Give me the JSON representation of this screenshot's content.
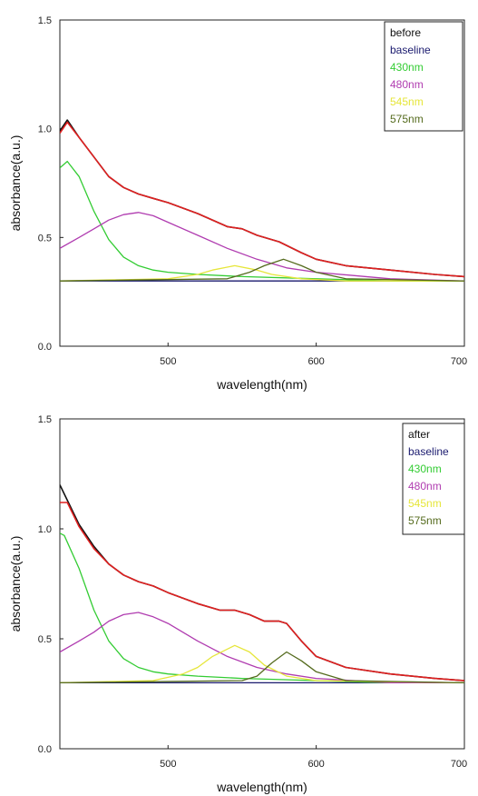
{
  "chart_data": [
    {
      "type": "line",
      "xlabel": "wavelength(nm)",
      "ylabel": "absorbance(a.u.)",
      "xlim": [
        427,
        700
      ],
      "ylim": [
        0.0,
        1.5
      ],
      "xticks": [
        500,
        600,
        700
      ],
      "yticks": [
        0.0,
        0.5,
        1.0,
        1.5
      ],
      "xtick_labels": [
        "500",
        "600",
        "700"
      ],
      "ytick_labels": [
        "0.0",
        "0.5",
        "1.0",
        "1.5"
      ],
      "grid": false,
      "legend_position": "top-right",
      "legend_entries": [
        "before",
        "baseline",
        "430nm",
        "480nm",
        "545nm",
        "575nm"
      ],
      "series": [
        {
          "name": "before",
          "color": "#111111",
          "x": [
            427,
            432,
            440,
            450,
            460,
            470,
            480,
            490,
            500,
            520,
            540,
            550,
            560,
            575,
            590,
            600,
            620,
            650,
            680,
            700
          ],
          "y": [
            0.99,
            1.04,
            0.96,
            0.87,
            0.78,
            0.73,
            0.7,
            0.68,
            0.66,
            0.61,
            0.55,
            0.54,
            0.51,
            0.48,
            0.43,
            0.4,
            0.37,
            0.35,
            0.33,
            0.32
          ]
        },
        {
          "name": "baseline",
          "color": "#1a1a6e",
          "x": [
            427,
            700
          ],
          "y": [
            0.3,
            0.3
          ]
        },
        {
          "name": "430nm",
          "color": "#33cc33",
          "x": [
            427,
            432,
            440,
            450,
            460,
            470,
            480,
            490,
            500,
            520,
            550,
            600,
            650,
            700
          ],
          "y": [
            0.82,
            0.85,
            0.78,
            0.62,
            0.49,
            0.41,
            0.37,
            0.35,
            0.34,
            0.33,
            0.32,
            0.31,
            0.3,
            0.3
          ]
        },
        {
          "name": "480nm",
          "color": "#b03cb0",
          "x": [
            427,
            440,
            450,
            460,
            470,
            480,
            490,
            500,
            520,
            540,
            560,
            580,
            600,
            650,
            700
          ],
          "y": [
            0.45,
            0.5,
            0.54,
            0.58,
            0.605,
            0.615,
            0.6,
            0.57,
            0.51,
            0.45,
            0.4,
            0.36,
            0.34,
            0.31,
            0.3
          ]
        },
        {
          "name": "545nm",
          "color": "#e6e63a",
          "x": [
            427,
            500,
            520,
            530,
            545,
            560,
            570,
            590,
            620,
            700
          ],
          "y": [
            0.3,
            0.31,
            0.33,
            0.35,
            0.37,
            0.35,
            0.33,
            0.31,
            0.3,
            0.3
          ]
        },
        {
          "name": "575nm",
          "color": "#556b1e",
          "x": [
            427,
            540,
            555,
            565,
            578,
            590,
            600,
            620,
            700
          ],
          "y": [
            0.3,
            0.31,
            0.34,
            0.37,
            0.4,
            0.37,
            0.34,
            0.31,
            0.3
          ]
        },
        {
          "name": "",
          "color": "#e02020",
          "x": [
            427,
            432,
            440,
            450,
            460,
            470,
            480,
            490,
            500,
            520,
            540,
            550,
            560,
            575,
            590,
            600,
            620,
            650,
            680,
            700
          ],
          "y": [
            0.98,
            1.03,
            0.96,
            0.87,
            0.78,
            0.73,
            0.7,
            0.68,
            0.66,
            0.61,
            0.55,
            0.54,
            0.51,
            0.48,
            0.43,
            0.4,
            0.37,
            0.35,
            0.33,
            0.32
          ]
        }
      ]
    },
    {
      "type": "line",
      "xlabel": "wavelength(nm)",
      "ylabel": "absorbance(a.u.)",
      "xlim": [
        427,
        700
      ],
      "ylim": [
        0.0,
        1.5
      ],
      "xticks": [
        500,
        600,
        700
      ],
      "yticks": [
        0.0,
        0.5,
        1.0,
        1.5
      ],
      "xtick_labels": [
        "500",
        "600",
        "700"
      ],
      "ytick_labels": [
        "0.0",
        "0.5",
        "1.0",
        "1.5"
      ],
      "grid": false,
      "legend_position": "top-right",
      "legend_entries": [
        "after",
        "baseline",
        "430nm",
        "480nm",
        "545nm",
        "575nm"
      ],
      "series": [
        {
          "name": "after",
          "color": "#111111",
          "x": [
            427,
            432,
            440,
            450,
            460,
            470,
            480,
            490,
            500,
            520,
            535,
            545,
            555,
            565,
            575,
            580,
            590,
            600,
            620,
            650,
            680,
            700
          ],
          "y": [
            1.2,
            1.13,
            1.02,
            0.92,
            0.84,
            0.79,
            0.76,
            0.74,
            0.71,
            0.66,
            0.63,
            0.63,
            0.61,
            0.58,
            0.58,
            0.57,
            0.49,
            0.42,
            0.37,
            0.34,
            0.32,
            0.31
          ]
        },
        {
          "name": "baseline",
          "color": "#1a1a6e",
          "x": [
            427,
            700
          ],
          "y": [
            0.3,
            0.3
          ]
        },
        {
          "name": "430nm",
          "color": "#33cc33",
          "x": [
            427,
            430,
            440,
            450,
            460,
            470,
            480,
            490,
            500,
            520,
            550,
            600,
            650,
            700
          ],
          "y": [
            0.98,
            0.97,
            0.82,
            0.63,
            0.49,
            0.41,
            0.37,
            0.35,
            0.34,
            0.33,
            0.32,
            0.31,
            0.3,
            0.3
          ]
        },
        {
          "name": "480nm",
          "color": "#b03cb0",
          "x": [
            427,
            440,
            450,
            460,
            470,
            480,
            490,
            500,
            520,
            540,
            560,
            580,
            600,
            650,
            700
          ],
          "y": [
            0.44,
            0.49,
            0.53,
            0.58,
            0.61,
            0.62,
            0.6,
            0.57,
            0.49,
            0.42,
            0.37,
            0.34,
            0.32,
            0.3,
            0.3
          ]
        },
        {
          "name": "545nm",
          "color": "#e6e63a",
          "x": [
            427,
            490,
            510,
            520,
            530,
            545,
            555,
            565,
            580,
            600,
            700
          ],
          "y": [
            0.3,
            0.31,
            0.34,
            0.37,
            0.42,
            0.47,
            0.44,
            0.38,
            0.33,
            0.31,
            0.3
          ]
        },
        {
          "name": "575nm",
          "color": "#556b1e",
          "x": [
            427,
            550,
            560,
            570,
            580,
            590,
            600,
            620,
            700
          ],
          "y": [
            0.3,
            0.31,
            0.33,
            0.39,
            0.44,
            0.4,
            0.35,
            0.31,
            0.3
          ]
        },
        {
          "name": "",
          "color": "#e02020",
          "x": [
            427,
            432,
            440,
            450,
            460,
            470,
            480,
            490,
            500,
            520,
            535,
            545,
            555,
            565,
            575,
            580,
            590,
            600,
            620,
            650,
            680,
            700
          ],
          "y": [
            1.12,
            1.12,
            1.01,
            0.91,
            0.84,
            0.79,
            0.76,
            0.74,
            0.71,
            0.66,
            0.63,
            0.63,
            0.61,
            0.58,
            0.58,
            0.57,
            0.49,
            0.42,
            0.37,
            0.34,
            0.32,
            0.31
          ]
        }
      ]
    }
  ]
}
